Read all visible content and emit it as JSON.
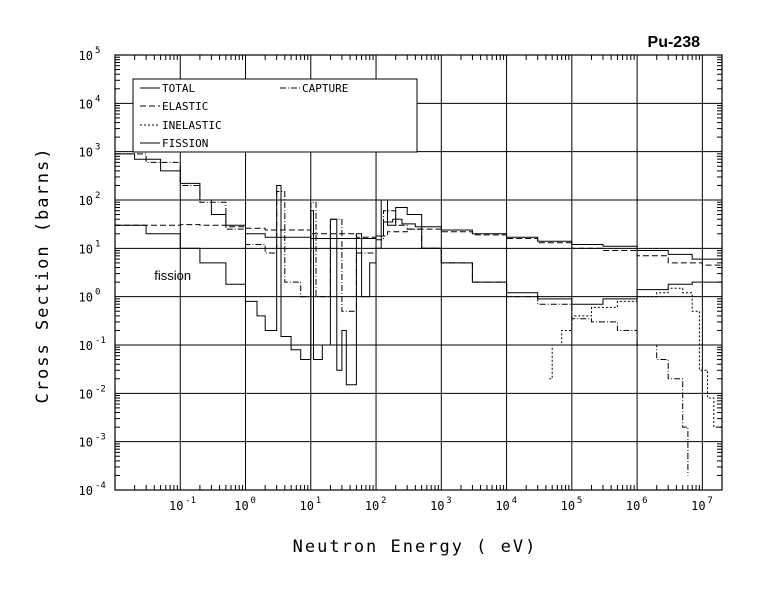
{
  "chart_data": {
    "type": "line",
    "title": "Pu-238",
    "xlabel": "Neutron Energy ( eV)",
    "ylabel": "Cross Section (barns)",
    "x_scale": "log",
    "y_scale": "log",
    "xlim": [
      0.01,
      20000000
    ],
    "ylim": [
      0.0001,
      100000
    ],
    "x_ticks": [
      {
        "base": "10",
        "exp": "-1",
        "value": 0.1
      },
      {
        "base": "10",
        "exp": "0",
        "value": 1
      },
      {
        "base": "10",
        "exp": "1",
        "value": 10
      },
      {
        "base": "10",
        "exp": "2",
        "value": 100
      },
      {
        "base": "10",
        "exp": "3",
        "value": 1000
      },
      {
        "base": "10",
        "exp": "4",
        "value": 10000
      },
      {
        "base": "10",
        "exp": "5",
        "value": 100000
      },
      {
        "base": "10",
        "exp": "6",
        "value": 1000000
      },
      {
        "base": "10",
        "exp": "7",
        "value": 10000000
      }
    ],
    "y_ticks": [
      {
        "base": "10",
        "exp": "-4",
        "value": 0.0001
      },
      {
        "base": "10",
        "exp": "-3",
        "value": 0.001
      },
      {
        "base": "10",
        "exp": "-2",
        "value": 0.01
      },
      {
        "base": "10",
        "exp": "-1",
        "value": 0.1
      },
      {
        "base": "10",
        "exp": "0",
        "value": 1
      },
      {
        "base": "10",
        "exp": "1",
        "value": 10
      },
      {
        "base": "10",
        "exp": "2",
        "value": 100
      },
      {
        "base": "10",
        "exp": "3",
        "value": 1000
      },
      {
        "base": "10",
        "exp": "4",
        "value": 10000
      },
      {
        "base": "10",
        "exp": "5",
        "value": 100000
      }
    ],
    "grid": true,
    "legend_position": "top-left",
    "legend": [
      {
        "label": "TOTAL",
        "style": "solid"
      },
      {
        "label": "CAPTURE",
        "style": "dashdot"
      },
      {
        "label": "ELASTIC",
        "style": "dashed"
      },
      {
        "label": "INELASTIC",
        "style": "dotted"
      },
      {
        "label": "FISSION",
        "style": "solid"
      }
    ],
    "annotations": [
      {
        "text": "fission",
        "x": 0.04,
        "y": 2.2
      }
    ],
    "series": [
      {
        "name": "TOTAL",
        "style": "solid",
        "points": [
          [
            0.01,
            900
          ],
          [
            0.02,
            700
          ],
          [
            0.05,
            400
          ],
          [
            0.1,
            220
          ],
          [
            0.2,
            100
          ],
          [
            0.3,
            50
          ],
          [
            0.5,
            30
          ],
          [
            1,
            20
          ],
          [
            2,
            17
          ],
          [
            5,
            17
          ],
          [
            10,
            16
          ],
          [
            20,
            16
          ],
          [
            50,
            16
          ],
          [
            100,
            18
          ],
          [
            130,
            35
          ],
          [
            180,
            40
          ],
          [
            250,
            32
          ],
          [
            400,
            28
          ],
          [
            1000,
            24
          ],
          [
            3000,
            20
          ],
          [
            10000,
            17
          ],
          [
            30000,
            14
          ],
          [
            100000,
            12
          ],
          [
            300000,
            11
          ],
          [
            1000000,
            9
          ],
          [
            3000000,
            7.5
          ],
          [
            7000000,
            6
          ],
          [
            20000000,
            6
          ]
        ]
      },
      {
        "name": "ELASTIC",
        "style": "dashed",
        "points": [
          [
            0.01,
            30
          ],
          [
            0.05,
            30
          ],
          [
            0.1,
            31
          ],
          [
            0.2,
            30
          ],
          [
            0.5,
            28
          ],
          [
            1,
            26
          ],
          [
            2,
            24
          ],
          [
            10,
            20
          ],
          [
            50,
            17
          ],
          [
            100,
            18
          ],
          [
            150,
            22
          ],
          [
            300,
            25
          ],
          [
            1000,
            22
          ],
          [
            3000,
            19
          ],
          [
            10000,
            16
          ],
          [
            30000,
            13
          ],
          [
            100000,
            10
          ],
          [
            300000,
            9
          ],
          [
            1000000,
            7
          ],
          [
            3000000,
            5
          ],
          [
            10000000,
            4.5
          ],
          [
            20000000,
            4
          ]
        ]
      },
      {
        "name": "CAPTURE",
        "style": "dashdot",
        "points": [
          [
            0.01,
            900
          ],
          [
            0.03,
            600
          ],
          [
            0.1,
            200
          ],
          [
            0.2,
            90
          ],
          [
            0.5,
            25
          ],
          [
            1,
            12
          ],
          [
            2,
            8
          ],
          [
            3,
            150
          ],
          [
            4,
            2
          ],
          [
            7,
            1
          ],
          [
            10,
            90
          ],
          [
            12,
            1
          ],
          [
            20,
            40
          ],
          [
            30,
            0.5
          ],
          [
            50,
            8
          ],
          [
            100,
            15
          ],
          [
            130,
            60
          ],
          [
            200,
            30
          ],
          [
            300,
            25
          ],
          [
            500,
            10
          ],
          [
            1000,
            5
          ],
          [
            3000,
            2
          ],
          [
            10000,
            1
          ],
          [
            30000,
            0.7
          ],
          [
            100000,
            0.35
          ],
          [
            200000,
            0.3
          ],
          [
            500000,
            0.2
          ],
          [
            1000000,
            0.1
          ],
          [
            2000000,
            0.05
          ],
          [
            3000000,
            0.02
          ],
          [
            5000000,
            0.002
          ],
          [
            6000000,
            0.0002
          ]
        ]
      },
      {
        "name": "INELASTIC",
        "style": "dotted",
        "points": [
          [
            45000,
            0.02
          ],
          [
            50000,
            0.1
          ],
          [
            70000,
            0.2
          ],
          [
            100000,
            0.4
          ],
          [
            200000,
            0.6
          ],
          [
            500000,
            0.8
          ],
          [
            1000000,
            1
          ],
          [
            2000000,
            1.2
          ],
          [
            3000000,
            1.5
          ],
          [
            5000000,
            1.2
          ],
          [
            7000000,
            0.5
          ],
          [
            9000000,
            0.03
          ],
          [
            12000000,
            0.008
          ],
          [
            15000000,
            0.002
          ],
          [
            20000000,
            0.001
          ]
        ]
      },
      {
        "name": "FISSION",
        "style": "solid",
        "points": [
          [
            0.01,
            30
          ],
          [
            0.03,
            20
          ],
          [
            0.1,
            10
          ],
          [
            0.2,
            5
          ],
          [
            0.5,
            1.8
          ],
          [
            1,
            0.8
          ],
          [
            1.5,
            0.4
          ],
          [
            2,
            0.2
          ],
          [
            3,
            200
          ],
          [
            3.5,
            0.15
          ],
          [
            5,
            0.08
          ],
          [
            7,
            0.05
          ],
          [
            10,
            60
          ],
          [
            11,
            0.05
          ],
          [
            15,
            0.1
          ],
          [
            20,
            40
          ],
          [
            25,
            0.03
          ],
          [
            30,
            0.2
          ],
          [
            35,
            0.015
          ],
          [
            50,
            20
          ],
          [
            60,
            1
          ],
          [
            80,
            5
          ],
          [
            100,
            10
          ],
          [
            120,
            100
          ],
          [
            150,
            30
          ],
          [
            200,
            70
          ],
          [
            300,
            50
          ],
          [
            500,
            10
          ],
          [
            1000,
            5
          ],
          [
            3000,
            2
          ],
          [
            10000,
            1.2
          ],
          [
            30000,
            0.9
          ],
          [
            100000,
            0.7
          ],
          [
            300000,
            0.9
          ],
          [
            1000000,
            1.4
          ],
          [
            3000000,
            1.8
          ],
          [
            7000000,
            2
          ],
          [
            20000000,
            2.5
          ]
        ]
      }
    ]
  }
}
